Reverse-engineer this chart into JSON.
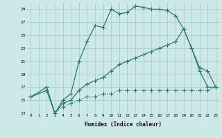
{
  "xlabel": "Humidex (Indice chaleur)",
  "bg_color": "#cce8e8",
  "grid_color": "#aacccc",
  "line_color": "#2a7a6a",
  "ylim": [
    13,
    30
  ],
  "xlim": [
    -0.5,
    23.5
  ],
  "yticks": [
    13,
    15,
    17,
    19,
    21,
    23,
    25,
    27,
    29
  ],
  "xticks": [
    0,
    1,
    2,
    3,
    4,
    5,
    6,
    7,
    8,
    9,
    10,
    11,
    12,
    13,
    14,
    15,
    16,
    17,
    18,
    19,
    20,
    21,
    22,
    23
  ],
  "line1_x": [
    0,
    2,
    3,
    4,
    5,
    6,
    7,
    8,
    9,
    10,
    11,
    12,
    13,
    14,
    15,
    16,
    17,
    18,
    19,
    20,
    21,
    22,
    23
  ],
  "line1_y": [
    15.5,
    17.0,
    13.0,
    15.0,
    16.0,
    21.0,
    24.0,
    26.5,
    26.2,
    29.0,
    28.3,
    28.5,
    29.5,
    29.3,
    29.0,
    29.0,
    28.8,
    28.0,
    26.0,
    23.0,
    19.5,
    17.0,
    17.0
  ],
  "line2_x": [
    0,
    2,
    3,
    4,
    5,
    6,
    7,
    8,
    9,
    10,
    11,
    12,
    13,
    14,
    15,
    16,
    17,
    18,
    19,
    20,
    21,
    22,
    23
  ],
  "line2_y": [
    15.5,
    16.5,
    13.0,
    14.5,
    15.0,
    16.5,
    17.5,
    18.0,
    18.5,
    19.5,
    20.5,
    21.0,
    21.5,
    22.0,
    22.5,
    23.0,
    23.5,
    24.0,
    26.0,
    23.0,
    20.0,
    19.5,
    17.0
  ],
  "line3_x": [
    0,
    2,
    3,
    4,
    5,
    6,
    7,
    8,
    9,
    10,
    11,
    12,
    13,
    14,
    15,
    16,
    17,
    18,
    19,
    20,
    21,
    22,
    23
  ],
  "line3_y": [
    15.5,
    16.5,
    13.0,
    14.0,
    14.5,
    15.0,
    15.5,
    15.5,
    16.0,
    16.0,
    16.5,
    16.5,
    16.5,
    16.5,
    16.5,
    16.5,
    16.5,
    16.5,
    16.5,
    16.5,
    16.5,
    16.5,
    17.0
  ]
}
